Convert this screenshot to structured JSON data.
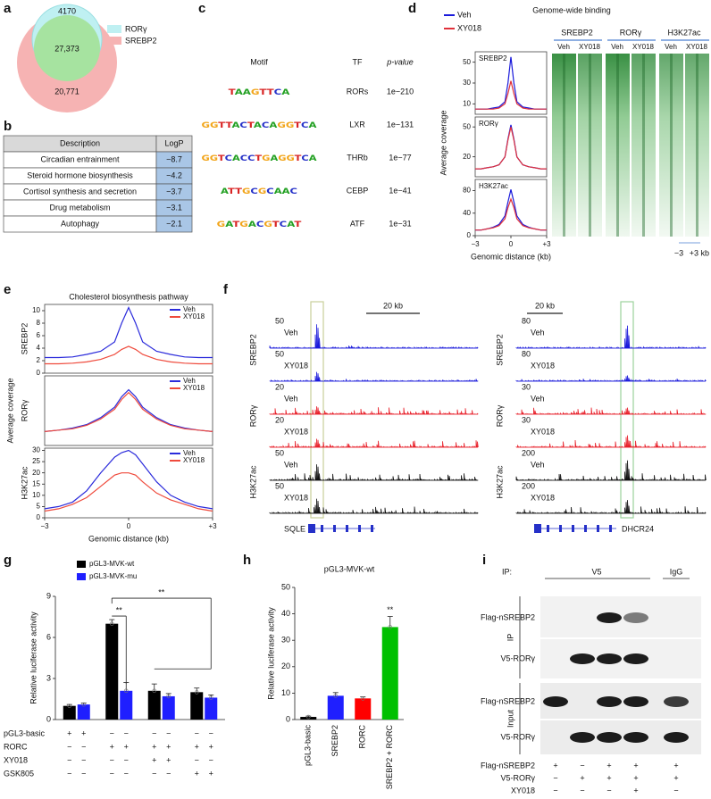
{
  "panel_labels": [
    "a",
    "b",
    "c",
    "d",
    "e",
    "f",
    "g",
    "h",
    "i"
  ],
  "venn": {
    "sets": [
      {
        "name": "RORγ",
        "color": "#bff0f2"
      },
      {
        "name": "SREBP2",
        "color": "#f6b3b3"
      }
    ],
    "counts": [
      "4170",
      "27,373",
      "20,771"
    ]
  },
  "pathway_table": {
    "header": [
      "Description",
      "LogP"
    ],
    "rows": [
      [
        "Circadian entrainment",
        "−8.7"
      ],
      [
        "Steroid hormone biosynthesis",
        "−4.2"
      ],
      [
        "Cortisol synthesis and secretion",
        "−3.7"
      ],
      [
        "Drug metabolism",
        "−3.1"
      ],
      [
        "Autophagy",
        "−2.1"
      ]
    ]
  },
  "motifs": {
    "header": [
      "Motif",
      "TF",
      "p-value"
    ],
    "rows": [
      {
        "logo": "TAAGTTCA",
        "tf": "RORs",
        "p": "1e−210"
      },
      {
        "logo": "GGTTACTACAGGTCA",
        "tf": "LXR",
        "p": "1e−131"
      },
      {
        "logo": "GGTCACCTGAGGTCA",
        "tf": "THRb",
        "p": "1e−77"
      },
      {
        "logo": "ATTGCGCAAC",
        "tf": "CEBP",
        "p": "1e−41"
      },
      {
        "logo": "GATGACGTCAT",
        "tf": "ATF",
        "p": "1e−31"
      }
    ]
  },
  "binding": {
    "title": "Genome-wide binding",
    "ylabel": "Average coverage",
    "xlabel": "Genomic distance (kb)",
    "heatmap": {
      "groups": [
        "SREBP2",
        "RORγ",
        "H3K27ac"
      ],
      "columns": [
        "Veh",
        "XY018"
      ],
      "scale": [
        "−3",
        "+3 kb"
      ]
    }
  },
  "pathway_profile": {
    "title": "Cholesterol biosynthesis pathway",
    "ylabel": "Average coverage",
    "xlabel": "Genomic distance (kb)"
  },
  "tracks": {
    "colors": [
      "#1a1adb",
      "#e8202a",
      "#111111"
    ],
    "browsers": [
      {
        "scale": "20 kb",
        "gene": "SQLE",
        "groups": [
          "SREBP2",
          "RORγ",
          "H3K27ac"
        ],
        "tracks": [
          {
            "label": "Veh",
            "max": 50
          },
          {
            "label": "XY018",
            "max": 50
          },
          {
            "label": "Veh",
            "max": 20
          },
          {
            "label": "XY018",
            "max": 20
          },
          {
            "label": "Veh",
            "max": 50
          },
          {
            "label": "XY018",
            "max": 50
          }
        ]
      },
      {
        "scale": "20 kb",
        "gene": "DHCR24",
        "groups": [
          "SREBP2",
          "RORγ",
          "H3K27ac"
        ],
        "tracks": [
          {
            "label": "Veh",
            "max": 80
          },
          {
            "label": "XY018",
            "max": 80
          },
          {
            "label": "Veh",
            "max": 30
          },
          {
            "label": "XY018",
            "max": 30
          },
          {
            "label": "Veh",
            "max": 200
          },
          {
            "label": "XY018",
            "max": 200
          }
        ]
      }
    ]
  },
  "blot": {
    "ip_label": "IP:",
    "ip_groups": [
      "V5",
      "IgG"
    ],
    "sections": [
      "IP",
      "Input"
    ],
    "rows": [
      "Flag-nSREBP2",
      "V5-RORγ",
      "Flag-nSREBP2",
      "V5-RORγ"
    ],
    "conditions": [
      {
        "name": "Flag-nSREBP2",
        "signs": [
          "+",
          "−",
          "+",
          "+",
          "+"
        ]
      },
      {
        "name": "V5-RORγ",
        "signs": [
          "−",
          "+",
          "+",
          "+",
          "+"
        ]
      },
      {
        "name": "XY018",
        "signs": [
          "−",
          "−",
          "−",
          "+",
          "−"
        ]
      }
    ]
  },
  "chart_data": [
    {
      "type": "line",
      "title": "SREBP2",
      "x": [
        -3,
        -2.5,
        -2,
        -1.5,
        -1,
        -0.5,
        -0.25,
        0,
        0.25,
        0.5,
        1,
        1.5,
        2,
        2.5,
        3
      ],
      "xlim": [
        -3,
        3
      ],
      "ylim": [
        0,
        60
      ],
      "yticks": [
        10,
        30,
        50
      ],
      "series": [
        {
          "name": "Veh",
          "color": "#1a1adb",
          "values": [
            5,
            5,
            5,
            6,
            7,
            12,
            30,
            55,
            30,
            12,
            7,
            6,
            5,
            5,
            5
          ]
        },
        {
          "name": "XY018",
          "color": "#e0303a",
          "values": [
            5,
            5,
            5,
            5,
            6,
            10,
            20,
            32,
            20,
            10,
            6,
            5,
            5,
            5,
            5
          ]
        }
      ]
    },
    {
      "type": "line",
      "title": "RORγ",
      "x": [
        -3,
        -2.5,
        -2,
        -1.5,
        -1,
        -0.5,
        -0.25,
        0,
        0.25,
        0.5,
        1,
        1.5,
        2,
        2.5,
        3
      ],
      "xlim": [
        -3,
        3
      ],
      "ylim": [
        0,
        60
      ],
      "yticks": [
        20,
        50
      ],
      "series": [
        {
          "color": "#1a1adb",
          "values": [
            8,
            8,
            9,
            10,
            12,
            20,
            38,
            52,
            38,
            20,
            12,
            10,
            9,
            8,
            8
          ]
        },
        {
          "color": "#e0303a",
          "values": [
            8,
            8,
            9,
            10,
            12,
            20,
            37,
            50,
            37,
            20,
            12,
            10,
            9,
            8,
            8
          ]
        }
      ]
    },
    {
      "type": "line",
      "title": "H3K27ac",
      "x": [
        -3,
        -2.5,
        -2,
        -1.5,
        -1,
        -0.5,
        -0.25,
        0,
        0.25,
        0.5,
        1,
        1.5,
        2,
        2.5,
        3
      ],
      "xlim": [
        -3,
        3
      ],
      "ylim": [
        0,
        100
      ],
      "yticks": [
        0,
        40,
        80
      ],
      "xticks": [
        {
          "value": -3,
          "label": "−3"
        },
        0,
        {
          "value": 3,
          "label": "+3"
        }
      ],
      "series": [
        {
          "color": "#1a1adb",
          "values": [
            10,
            10,
            12,
            15,
            20,
            35,
            60,
            82,
            60,
            35,
            20,
            15,
            12,
            10,
            10
          ]
        },
        {
          "color": "#e0303a",
          "values": [
            10,
            10,
            12,
            14,
            18,
            30,
            50,
            65,
            50,
            30,
            18,
            14,
            12,
            10,
            10
          ]
        }
      ]
    },
    {
      "type": "line",
      "ylabel": "SREBP2",
      "x": [
        -3,
        -2.5,
        -2,
        -1.5,
        -1,
        -0.5,
        -0.25,
        0,
        0.25,
        0.5,
        1,
        1.5,
        2,
        2.5,
        3
      ],
      "xlim": [
        -3,
        3
      ],
      "ylim": [
        0,
        11
      ],
      "yticks": [
        0,
        2,
        4,
        6,
        8,
        10
      ],
      "series": [
        {
          "name": "Veh",
          "color": "#2b2bdb",
          "values": [
            2.5,
            2.5,
            2.6,
            3,
            3.5,
            5,
            8,
            10.5,
            8,
            5,
            3.5,
            3,
            2.6,
            2.5,
            2.5
          ]
        },
        {
          "name": "XY018",
          "color": "#ef4a3c",
          "values": [
            1.5,
            1.5,
            1.6,
            1.8,
            2.2,
            3,
            3.8,
            4.3,
            3.8,
            3,
            2.2,
            1.8,
            1.6,
            1.5,
            1.5
          ]
        }
      ]
    },
    {
      "type": "line",
      "ylabel": "RORγ",
      "x": [
        -3,
        -2.5,
        -2,
        -1.5,
        -1,
        -0.5,
        -0.25,
        0,
        0.25,
        0.5,
        1,
        1.5,
        2,
        2.5,
        3
      ],
      "xlim": [
        -3,
        3
      ],
      "ylim": [
        0,
        1
      ],
      "series": [
        {
          "name": "Veh",
          "color": "#2b2bdb",
          "values": [
            0.2,
            0.22,
            0.25,
            0.3,
            0.4,
            0.55,
            0.7,
            0.8,
            0.7,
            0.55,
            0.4,
            0.3,
            0.25,
            0.22,
            0.2
          ]
        },
        {
          "name": "XY018",
          "color": "#ef4a3c",
          "values": [
            0.2,
            0.22,
            0.24,
            0.29,
            0.38,
            0.52,
            0.66,
            0.76,
            0.66,
            0.52,
            0.38,
            0.29,
            0.24,
            0.22,
            0.2
          ]
        }
      ]
    },
    {
      "type": "line",
      "ylabel": "H3K27ac",
      "x": [
        -3,
        -2.5,
        -2,
        -1.5,
        -1,
        -0.5,
        -0.25,
        0,
        0.25,
        0.5,
        1,
        1.5,
        2,
        2.5,
        3
      ],
      "xlim": [
        -3,
        3
      ],
      "ylim": [
        0,
        31
      ],
      "yticks": [
        0,
        5,
        10,
        15,
        20,
        25,
        30
      ],
      "xticks": [
        {
          "value": -3,
          "label": "−3"
        },
        0,
        {
          "value": 3,
          "label": "+3"
        }
      ],
      "series": [
        {
          "name": "Veh",
          "color": "#2b2bdb",
          "values": [
            4,
            5,
            7,
            12,
            20,
            27,
            29,
            30,
            28,
            24,
            16,
            10,
            7,
            5,
            4
          ]
        },
        {
          "name": "XY018",
          "color": "#ef4a3c",
          "values": [
            3,
            4,
            6,
            9,
            14,
            19,
            20,
            20,
            19,
            16,
            11,
            8,
            6,
            4,
            3
          ]
        }
      ]
    },
    {
      "type": "bar",
      "ylabel": "Relative luciferase activity",
      "ylim": [
        0,
        9
      ],
      "yticks": [
        0,
        3,
        6,
        9
      ],
      "annotations": [
        "**",
        "**"
      ],
      "series": [
        {
          "name": "pGL3-MVK-wt",
          "color": "#000000",
          "values": [
            1.0,
            7.0,
            2.1,
            2.0
          ],
          "errors": [
            0.1,
            0.3,
            0.5,
            0.3
          ]
        },
        {
          "name": "pGL3-MVK-mu",
          "color": "#1f1fff",
          "values": [
            1.1,
            2.1,
            1.7,
            1.6
          ],
          "errors": [
            0.1,
            0.6,
            0.2,
            0.2
          ]
        }
      ],
      "conditions": [
        {
          "name": "pGL3-basic",
          "signs": [
            "+",
            "+",
            "−",
            "−",
            "−",
            "−",
            "−",
            "−"
          ]
        },
        {
          "name": "RORC",
          "signs": [
            "−",
            "−",
            "+",
            "+",
            "+",
            "+",
            "+",
            "+"
          ]
        },
        {
          "name": "XY018",
          "signs": [
            "−",
            "−",
            "−",
            "−",
            "+",
            "+",
            "−",
            "−"
          ]
        },
        {
          "name": "GSK805",
          "signs": [
            "−",
            "−",
            "−",
            "−",
            "−",
            "−",
            "+",
            "+"
          ]
        }
      ]
    },
    {
      "type": "bar",
      "title": "pGL3-MVK-wt",
      "ylabel": "Relative luciferase activity",
      "categories": [
        "pGL3-basic",
        "SREBP2",
        "RORC",
        "SREBP2 + RORC"
      ],
      "values": [
        1,
        9,
        8,
        35
      ],
      "errors": [
        0.3,
        1.2,
        0.6,
        4
      ],
      "colors": [
        "#000000",
        "#1f1fff",
        "#ff0000",
        "#00c000"
      ],
      "ylim": [
        0,
        50
      ],
      "yticks": [
        0,
        10,
        20,
        30,
        40,
        50
      ],
      "annotations": [
        "**"
      ]
    }
  ]
}
